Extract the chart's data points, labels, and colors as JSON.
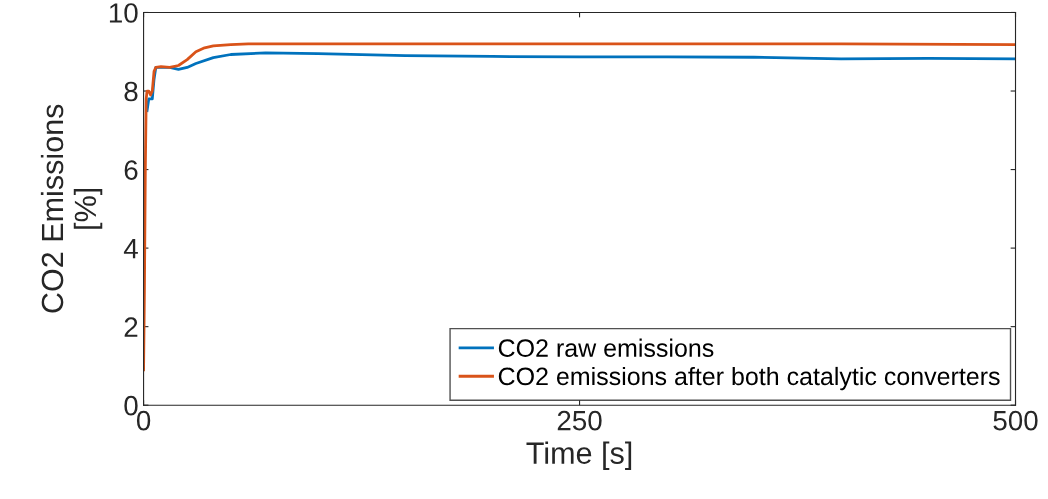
{
  "chart_data": {
    "type": "line",
    "xlabel": "Time [s]",
    "ylabel": "CO2 Emissions\n[%]",
    "xlim": [
      0,
      500
    ],
    "xticks": [
      0,
      250,
      500
    ],
    "ylim": [
      0,
      10
    ],
    "yticks": [
      0,
      2,
      4,
      6,
      8,
      10
    ],
    "grid": false,
    "legend": "bottom right",
    "series": [
      {
        "name": "CO2 raw emissions",
        "color": "#0072bd",
        "x": [
          2,
          3,
          5,
          6,
          7,
          15,
          20,
          25,
          30,
          40,
          50,
          70,
          100,
          150,
          200,
          250,
          300,
          350,
          400,
          450,
          500
        ],
        "values": [
          7.5,
          7.8,
          7.8,
          8.3,
          8.6,
          8.6,
          8.55,
          8.6,
          8.7,
          8.85,
          8.93,
          8.97,
          8.95,
          8.9,
          8.88,
          8.87,
          8.87,
          8.86,
          8.82,
          8.83,
          8.82
        ]
      },
      {
        "name": "CO2 emissions after both catalytic converters",
        "color": "#d95319",
        "x": [
          0,
          0.5,
          1,
          1.5,
          2,
          3,
          4,
          5,
          6,
          7,
          10,
          15,
          20,
          25,
          30,
          35,
          40,
          50,
          60,
          100,
          200,
          300,
          400,
          500
        ],
        "values": [
          0.9,
          3,
          6,
          7.8,
          8.0,
          8.0,
          7.9,
          8.0,
          8.5,
          8.6,
          8.62,
          8.6,
          8.65,
          8.8,
          9.0,
          9.1,
          9.15,
          9.18,
          9.2,
          9.2,
          9.2,
          9.2,
          9.2,
          9.18
        ]
      }
    ]
  }
}
